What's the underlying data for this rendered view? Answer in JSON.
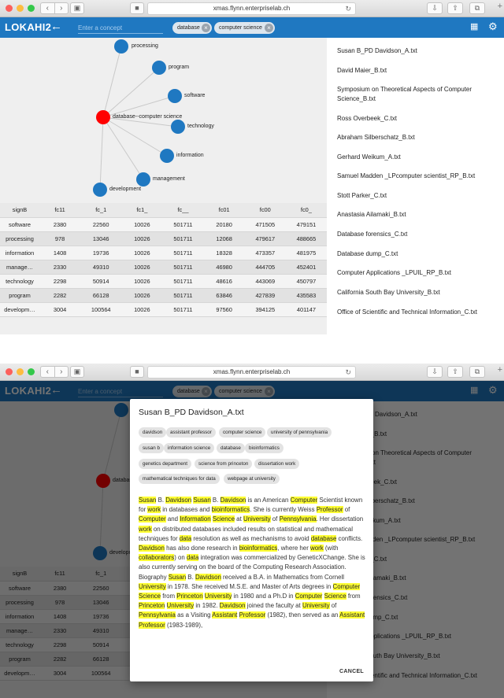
{
  "browser": {
    "url": "xmas.flynn.enterpriselab.ch"
  },
  "app": {
    "logo": "LOKAHI2",
    "back_icon": "arrow-left-icon",
    "concept_placeholder": "Enter a concept",
    "chips": [
      {
        "label": "database"
      },
      {
        "label": "computer science"
      }
    ]
  },
  "graph": {
    "center": {
      "label": "database--computer science",
      "color": "#ff0000"
    },
    "node_color": "#1f78c1",
    "nodes": [
      {
        "label": "processing"
      },
      {
        "label": "program"
      },
      {
        "label": "software"
      },
      {
        "label": "technology"
      },
      {
        "label": "information"
      },
      {
        "label": "management"
      },
      {
        "label": "development"
      }
    ]
  },
  "table": {
    "columns": [
      "signB",
      "fc11",
      "fc_1",
      "fc1_",
      "fc__",
      "fc01",
      "fc00",
      "fc0_"
    ],
    "rows": [
      [
        "software",
        "2380",
        "22560",
        "10026",
        "501711",
        "20180",
        "471505",
        "479151"
      ],
      [
        "processing",
        "978",
        "13046",
        "10026",
        "501711",
        "12068",
        "479617",
        "488665"
      ],
      [
        "information",
        "1408",
        "19736",
        "10026",
        "501711",
        "18328",
        "473357",
        "481975"
      ],
      [
        "manage…",
        "2330",
        "49310",
        "10026",
        "501711",
        "46980",
        "444705",
        "452401"
      ],
      [
        "technology",
        "2298",
        "50914",
        "10026",
        "501711",
        "48616",
        "443069",
        "450797"
      ],
      [
        "program",
        "2282",
        "66128",
        "10026",
        "501711",
        "63846",
        "427839",
        "435583"
      ],
      [
        "developm…",
        "3004",
        "100564",
        "10026",
        "501711",
        "97560",
        "394125",
        "401147"
      ]
    ]
  },
  "documents": [
    "Susan B_PD Davidson_A.txt",
    "David Maier_B.txt",
    "Symposium on Theoretical Aspects of Computer Science_B.txt",
    "Ross Overbeek_C.txt",
    "Abraham Silberschatz_B.txt",
    "Gerhard Weikum_A.txt",
    "Samuel Madden _LPcomputer scientist_RP_B.txt",
    "Stott Parker_C.txt",
    "Anastasia Ailamaki_B.txt",
    "Database forensics_C.txt",
    "Database dump_C.txt",
    "Computer Applications _LPUIL_RP_B.txt",
    "California South Bay University_B.txt",
    "Office of Scientific and Technical Information_C.txt"
  ],
  "dialog": {
    "title": "Susan B_PD Davidson_A.txt",
    "tags": [
      "davidson",
      "assistant professor",
      "computer science",
      "university of pennsylvania",
      "susan b",
      "information science",
      "database",
      "bioinformatics",
      "genetics department",
      "science from princeton",
      "dissertation work",
      "mathematical techniques for data",
      "webpage at university"
    ],
    "highlight_color": "#ffff33",
    "bio": [
      {
        "t": "Susan",
        "h": true
      },
      {
        "t": " B. "
      },
      {
        "t": "Davidson",
        "h": true
      },
      {
        "t": " "
      },
      {
        "t": "Susan",
        "h": true
      },
      {
        "t": " B. "
      },
      {
        "t": "Davidson",
        "h": true
      },
      {
        "t": " is an American "
      },
      {
        "t": "Computer",
        "h": true
      },
      {
        "t": " Scientist known for "
      },
      {
        "t": "work",
        "h": true
      },
      {
        "t": " in databases and "
      },
      {
        "t": "bioinformatics",
        "h": true
      },
      {
        "t": ". She is currently Weiss "
      },
      {
        "t": "Professor",
        "h": true
      },
      {
        "t": " of "
      },
      {
        "t": "Computer",
        "h": true
      },
      {
        "t": " and "
      },
      {
        "t": "Information",
        "h": true
      },
      {
        "t": " "
      },
      {
        "t": "Science",
        "h": true
      },
      {
        "t": " at "
      },
      {
        "t": "University",
        "h": true
      },
      {
        "t": " of "
      },
      {
        "t": "Pennsylvania",
        "h": true
      },
      {
        "t": ". Her dissertation "
      },
      {
        "t": "work",
        "h": true
      },
      {
        "t": " on distributed databases included results on statistical and mathematical techniques for "
      },
      {
        "t": "data",
        "h": true
      },
      {
        "t": " resolution as well as mechanisms to avoid "
      },
      {
        "t": "database",
        "h": true
      },
      {
        "t": " conflicts. "
      },
      {
        "t": "Davidson",
        "h": true
      },
      {
        "t": " has also done research in "
      },
      {
        "t": "bioinformatics",
        "h": true
      },
      {
        "t": ", where her "
      },
      {
        "t": "work",
        "h": true
      },
      {
        "t": " (with "
      },
      {
        "t": "collaborators",
        "h": true
      },
      {
        "t": ") on "
      },
      {
        "t": "data",
        "h": true
      },
      {
        "t": " integration was commercialized by GeneticXChange. She is also currently serving on the board of the Computing Research Association. Biography "
      },
      {
        "t": "Susan",
        "h": true
      },
      {
        "t": " B. "
      },
      {
        "t": "Davidson",
        "h": true
      },
      {
        "t": " received a B.A. in Mathematics from Cornell "
      },
      {
        "t": "University",
        "h": true
      },
      {
        "t": " in 1978. She received M.S.E. and Master of Arts degrees in "
      },
      {
        "t": "Computer",
        "h": true
      },
      {
        "t": " "
      },
      {
        "t": "Science",
        "h": true
      },
      {
        "t": " from "
      },
      {
        "t": "Princeton",
        "h": true
      },
      {
        "t": " "
      },
      {
        "t": "University",
        "h": true
      },
      {
        "t": " in 1980 and a Ph.D in "
      },
      {
        "t": "Computer",
        "h": true
      },
      {
        "t": " "
      },
      {
        "t": "Science",
        "h": true
      },
      {
        "t": " from "
      },
      {
        "t": "Princeton",
        "h": true
      },
      {
        "t": " "
      },
      {
        "t": "University",
        "h": true
      },
      {
        "t": " in 1982. "
      },
      {
        "t": "Davidson",
        "h": true
      },
      {
        "t": " joined the faculty at "
      },
      {
        "t": "University",
        "h": true
      },
      {
        "t": " of "
      },
      {
        "t": "Pennsylvania",
        "h": true
      },
      {
        "t": " as a Visiting "
      },
      {
        "t": "Assistant",
        "h": true
      },
      {
        "t": " "
      },
      {
        "t": "Professor",
        "h": true
      },
      {
        "t": " (1982), then served as an "
      },
      {
        "t": "Assistant",
        "h": true
      },
      {
        "t": " "
      },
      {
        "t": "Professor",
        "h": true
      },
      {
        "t": " (1983-1989),"
      }
    ],
    "cancel_label": "CANCEL"
  }
}
